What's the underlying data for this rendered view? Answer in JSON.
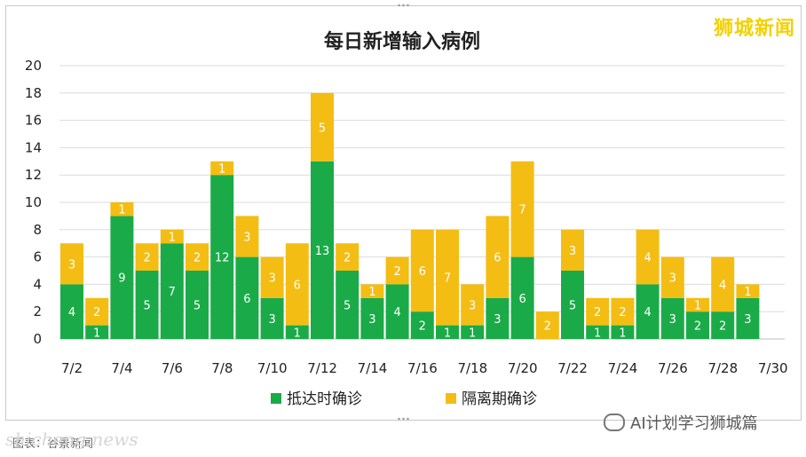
{
  "brand": "狮城新闻",
  "caption": "图表：谷景新闻",
  "watermark_left": "shicheng.news",
  "watermark_right": "AI计划学习狮城篇",
  "colors": {
    "arrival": "#1aab48",
    "quarantine": "#f4bd14",
    "grid": "#dcdcdc"
  },
  "chart_data": {
    "type": "bar",
    "stacked": true,
    "title": "每日新增输入病例",
    "xlabel": "",
    "ylabel": "",
    "ylim": [
      0,
      20
    ],
    "yticks": [
      0,
      2,
      4,
      6,
      8,
      10,
      12,
      14,
      16,
      18,
      20
    ],
    "grid": true,
    "legend_position": "bottom",
    "categories": [
      "7/2",
      "7/3",
      "7/4",
      "7/5",
      "7/6",
      "7/7",
      "7/8",
      "7/9",
      "7/10",
      "7/11",
      "7/12",
      "7/13",
      "7/14",
      "7/15",
      "7/16",
      "7/17",
      "7/18",
      "7/19",
      "7/20",
      "7/21",
      "7/22",
      "7/23",
      "7/24",
      "7/25",
      "7/26",
      "7/27",
      "7/28",
      "7/29"
    ],
    "xtick_labels": [
      "7/2",
      "7/4",
      "7/6",
      "7/8",
      "7/10",
      "7/12",
      "7/14",
      "7/16",
      "7/18",
      "7/20",
      "7/22",
      "7/24",
      "7/26",
      "7/28",
      "7/30"
    ],
    "series": [
      {
        "name": "抵达时确诊",
        "color": "#1aab48",
        "values": [
          4,
          1,
          9,
          5,
          7,
          5,
          12,
          6,
          3,
          1,
          13,
          5,
          3,
          4,
          2,
          1,
          1,
          3,
          6,
          0,
          5,
          1,
          1,
          4,
          3,
          2,
          2,
          3
        ]
      },
      {
        "name": "隔离期确诊",
        "color": "#f4bd14",
        "values": [
          3,
          2,
          1,
          2,
          1,
          2,
          1,
          3,
          3,
          6,
          5,
          2,
          1,
          2,
          6,
          7,
          3,
          6,
          7,
          2,
          3,
          2,
          2,
          4,
          3,
          1,
          4,
          1
        ]
      }
    ]
  }
}
